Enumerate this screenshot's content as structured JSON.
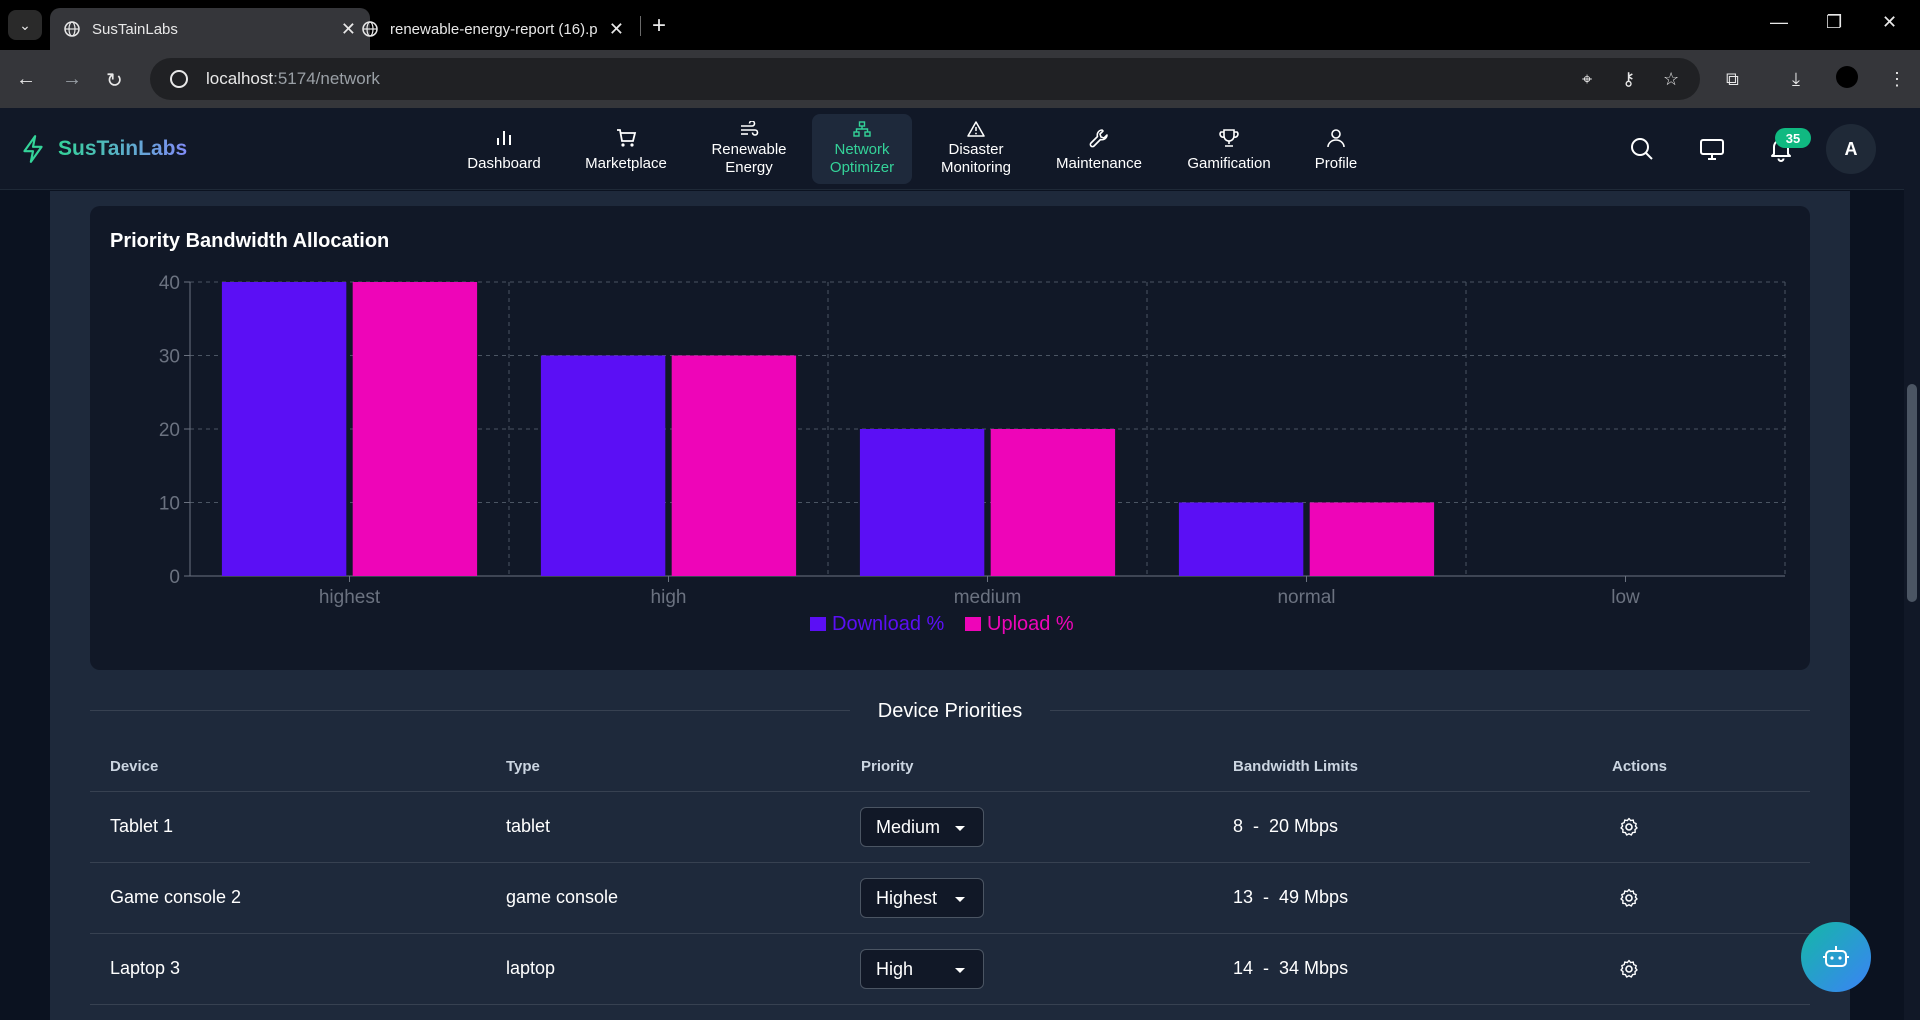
{
  "browser": {
    "tabs": [
      {
        "title": "SusTainLabs",
        "active": true
      },
      {
        "title": "renewable-energy-report (16).p",
        "active": false
      }
    ],
    "url_host": "localhost",
    "url_path": ":5174/network"
  },
  "app": {
    "brand": "SusTainLabs",
    "nav": [
      {
        "label": "Dashboard",
        "icon": "bar-chart-icon"
      },
      {
        "label": "Marketplace",
        "icon": "cart-icon"
      },
      {
        "label": "Renewable Energy",
        "icon": "wind-icon"
      },
      {
        "label": "Network Optimizer",
        "icon": "network-icon",
        "active": true
      },
      {
        "label": "Disaster Monitoring",
        "icon": "warning-icon"
      },
      {
        "label": "Maintenance",
        "icon": "wrench-icon"
      },
      {
        "label": "Gamification",
        "icon": "trophy-icon"
      },
      {
        "label": "Profile",
        "icon": "user-icon"
      }
    ],
    "notification_count": "35",
    "avatar_initial": "A",
    "accent": "#34d399"
  },
  "chart_section": {
    "title": "Priority Bandwidth Allocation"
  },
  "chart_data": {
    "type": "bar",
    "title": "Priority Bandwidth Allocation",
    "categories": [
      "highest",
      "high",
      "medium",
      "normal",
      "low"
    ],
    "series": [
      {
        "name": "Download %",
        "values": [
          40,
          30,
          20,
          10,
          0
        ],
        "color": "#5b0ff5"
      },
      {
        "name": "Upload %",
        "values": [
          40,
          30,
          20,
          10,
          0
        ],
        "color": "#ee05b8"
      }
    ],
    "ylim": [
      0,
      40
    ],
    "yticks": [
      "0",
      "10",
      "20",
      "30",
      "40"
    ],
    "grid": true,
    "legend": "bottom-center"
  },
  "devices_section": {
    "title": "Device Priorities",
    "columns": [
      "Device",
      "Type",
      "Priority",
      "Bandwidth Limits",
      "Actions"
    ],
    "rows": [
      {
        "device": "Tablet 1",
        "type": "tablet",
        "priority": "Medium",
        "min": "8",
        "max": "20 Mbps"
      },
      {
        "device": "Game console 2",
        "type": "game console",
        "priority": "Highest",
        "min": "13",
        "max": "49 Mbps"
      },
      {
        "device": "Laptop 3",
        "type": "laptop",
        "priority": "High",
        "min": "14",
        "max": "34 Mbps"
      }
    ]
  }
}
